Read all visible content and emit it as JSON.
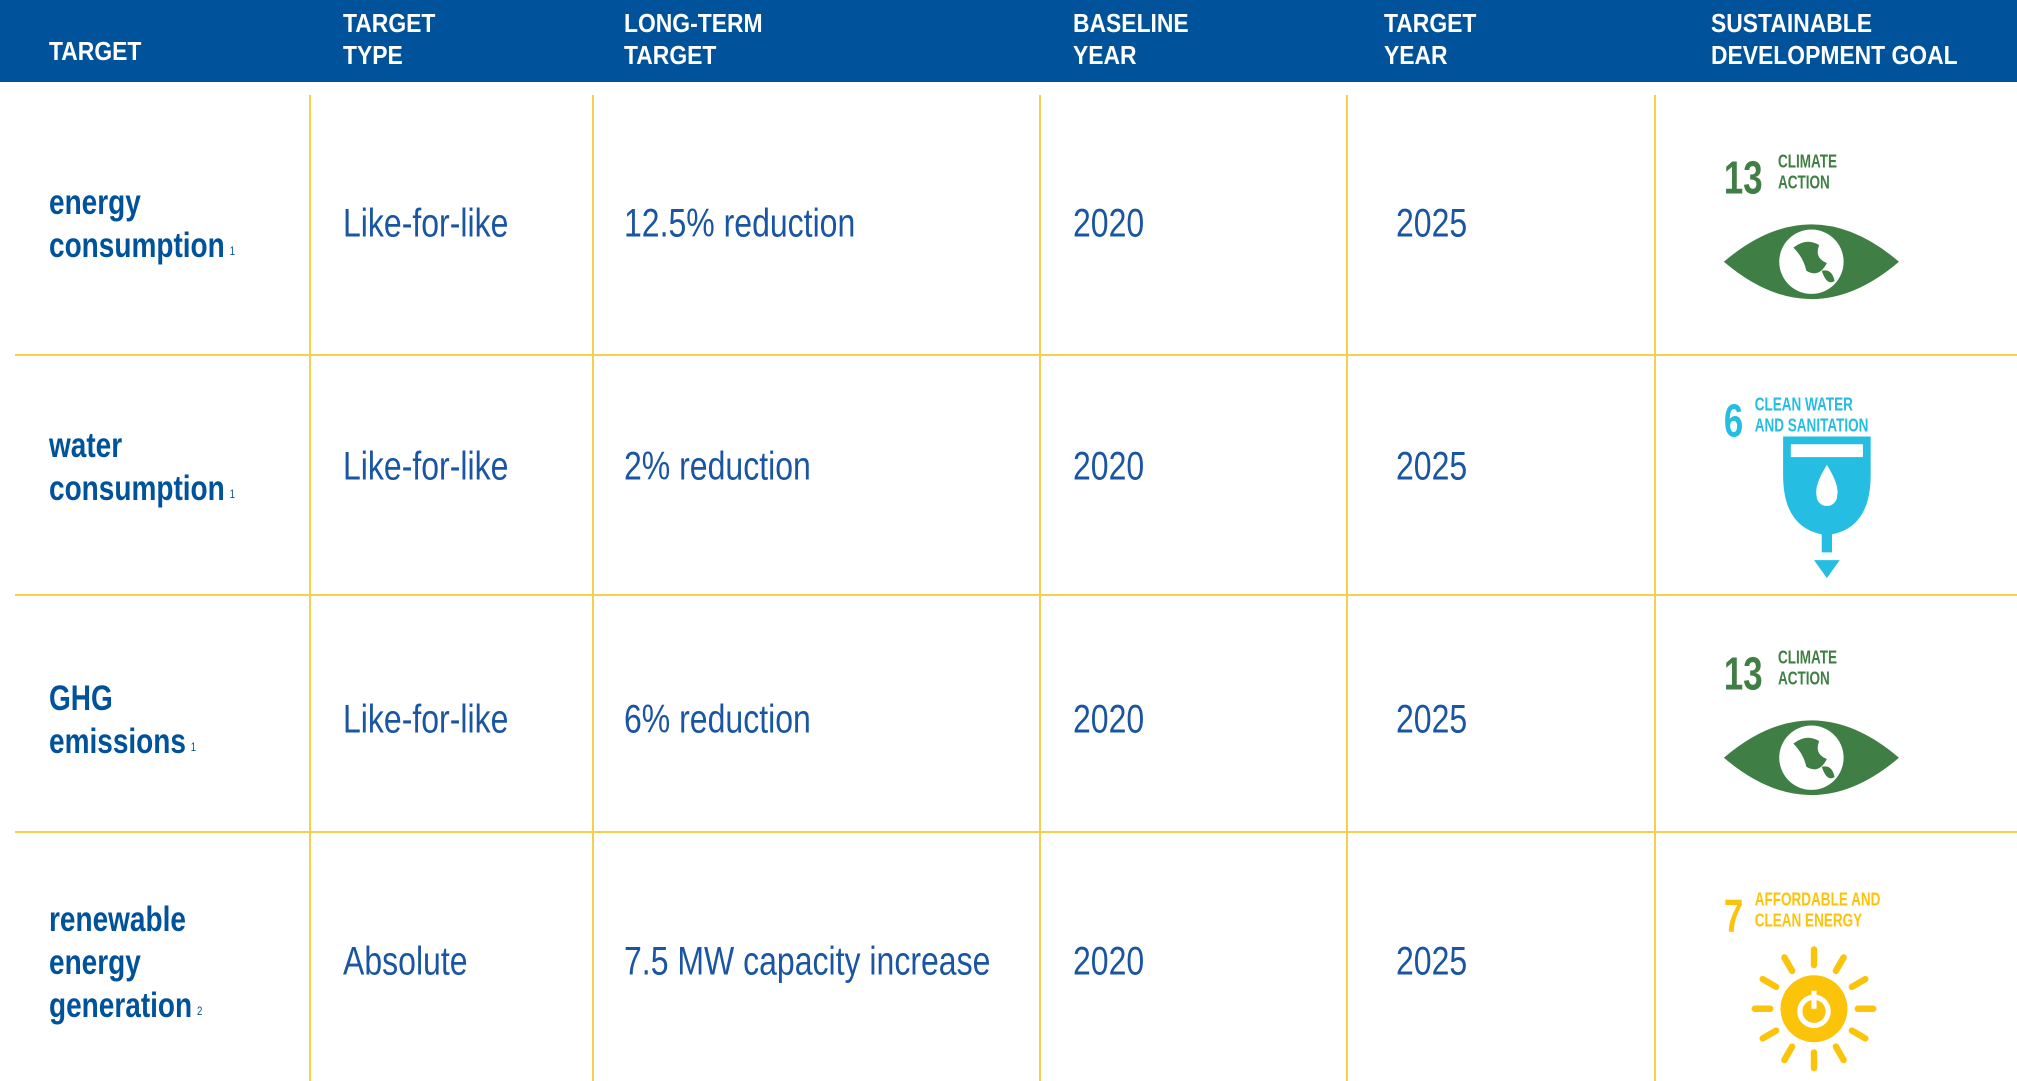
{
  "header": {
    "columns": [
      [
        "TARGET"
      ],
      [
        "TARGET",
        "TYPE"
      ],
      [
        "LONG-TERM",
        "TARGET"
      ],
      [
        "BASELINE",
        "YEAR"
      ],
      [
        "TARGET",
        "YEAR"
      ],
      [
        "SUSTAINABLE",
        "DEVELOPMENT GOAL"
      ]
    ]
  },
  "table": {
    "rows": [
      {
        "target": {
          "lines": [
            "energy",
            "consumption"
          ],
          "note": "1"
        },
        "type": "Like-for-like",
        "long_term": "12.5% reduction",
        "baseline": "2020",
        "target_year": "2025",
        "sdg": {
          "number": "13",
          "label": [
            "CLIMATE",
            "ACTION"
          ]
        }
      },
      {
        "target": {
          "lines": [
            "water",
            "consumption"
          ],
          "note": "1"
        },
        "type": "Like-for-like",
        "long_term": "2% reduction",
        "baseline": "2020",
        "target_year": "2025",
        "sdg": {
          "number": "6",
          "label": [
            "CLEAN WATER",
            "AND SANITATION"
          ]
        }
      },
      {
        "target": {
          "lines": [
            "GHG",
            "emissions"
          ],
          "note": "1"
        },
        "type": "Like-for-like",
        "long_term": "6% reduction",
        "baseline": "2020",
        "target_year": "2025",
        "sdg": {
          "number": "13",
          "label": [
            "CLIMATE",
            "ACTION"
          ]
        }
      },
      {
        "target": {
          "lines": [
            "renewable",
            "energy",
            "generation"
          ],
          "note": "2"
        },
        "type": "Absolute",
        "long_term": "7.5 MW capacity increase",
        "baseline": "2020",
        "target_year": "2025",
        "sdg": {
          "number": "7",
          "label": [
            "AFFORDABLE AND",
            "CLEAN ENERGY"
          ]
        }
      }
    ]
  }
}
